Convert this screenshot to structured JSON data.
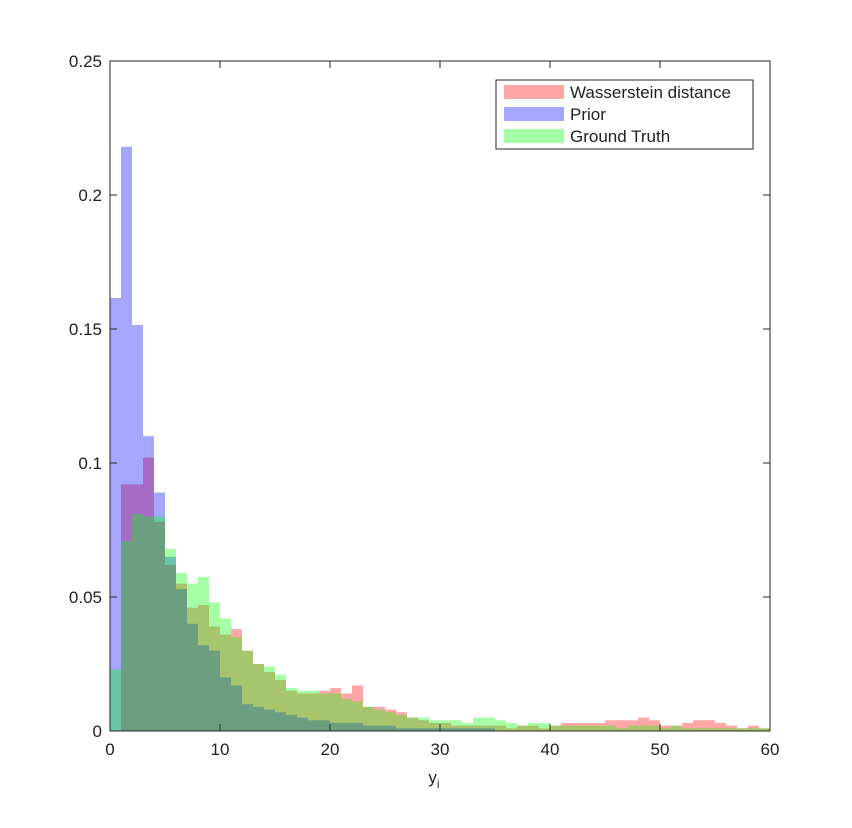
{
  "chart_data": {
    "type": "histogram",
    "xlabel": "y",
    "xlabel_subscript": "i",
    "bins": [
      0,
      1,
      2,
      3,
      4,
      5,
      6,
      7,
      8,
      9,
      10,
      11,
      12,
      13,
      14,
      15,
      16,
      17,
      18,
      19,
      20,
      21,
      22,
      23,
      24,
      25,
      26,
      27,
      28,
      29,
      30,
      31,
      32,
      33,
      34,
      35,
      36,
      37,
      38,
      39,
      40,
      41,
      42,
      43,
      44,
      45,
      46,
      47,
      48,
      49,
      50,
      51,
      52,
      53,
      54,
      55,
      56,
      57,
      58,
      59,
      60
    ],
    "alpha": 0.35,
    "series": [
      {
        "name": "Wasserstein distance",
        "color": "#ff0000",
        "values": [
          0,
          0.092,
          0.092,
          0.102,
          0.078,
          0.062,
          0.055,
          0.046,
          0.047,
          0.039,
          0.036,
          0.038,
          0.03,
          0.025,
          0.022,
          0.019,
          0.015,
          0.014,
          0.014,
          0.015,
          0.016,
          0.014,
          0.017,
          0.009,
          0.009,
          0.008,
          0.007,
          0.005,
          0.004,
          0.003,
          0.003,
          0.002,
          0.002,
          0.002,
          0.002,
          0.002,
          0.001,
          0.002,
          0.002,
          0.001,
          0.002,
          0.003,
          0.003,
          0.003,
          0.003,
          0.004,
          0.004,
          0.004,
          0.005,
          0.004,
          0.002,
          0.002,
          0.003,
          0.004,
          0.004,
          0.003,
          0.002,
          0.001,
          0.002,
          0.001
        ]
      },
      {
        "name": "Prior",
        "color": "#0000ff",
        "values": [
          0.1616,
          0.218,
          0.1515,
          0.11,
          0.089,
          0.065,
          0.053,
          0.04,
          0.032,
          0.03,
          0.02,
          0.017,
          0.01,
          0.009,
          0.008,
          0.007,
          0.006,
          0.005,
          0.004,
          0.004,
          0.003,
          0.003,
          0.003,
          0.002,
          0.002,
          0.002,
          0.001,
          0.001,
          0.001,
          0.001,
          0.001,
          0.001,
          0.001,
          0.001,
          0.001,
          0,
          0,
          0,
          0,
          0,
          0,
          0,
          0,
          0,
          0,
          0,
          0,
          0,
          0,
          0,
          0,
          0,
          0,
          0,
          0,
          0,
          0,
          0,
          0,
          0
        ]
      },
      {
        "name": "Ground Truth",
        "color": "#00ff00",
        "values": [
          0.023,
          0.071,
          0.081,
          0.08,
          0.08,
          0.068,
          0.059,
          0.055,
          0.0575,
          0.048,
          0.042,
          0.035,
          0.03,
          0.025,
          0.024,
          0.021,
          0.016,
          0.015,
          0.015,
          0.014,
          0.014,
          0.012,
          0.011,
          0.009,
          0.008,
          0.007,
          0.006,
          0.005,
          0.005,
          0.004,
          0.004,
          0.004,
          0.003,
          0.005,
          0.005,
          0.004,
          0.003,
          0.002,
          0.003,
          0.003,
          0.002,
          0.002,
          0.002,
          0.002,
          0.002,
          0.002,
          0.001,
          0.002,
          0.002,
          0.002,
          0.001,
          0.002,
          0.001,
          0.001,
          0.001,
          0.001,
          0.001,
          0.001,
          0.001,
          0.001
        ]
      }
    ],
    "xlim": [
      0,
      60
    ],
    "xticks": [
      0,
      10,
      20,
      30,
      40,
      50,
      60
    ],
    "ylim": [
      0,
      0.25
    ],
    "yticks": [
      0,
      0.05,
      0.1,
      0.15,
      0.2,
      0.25
    ],
    "legend": "upper right"
  }
}
